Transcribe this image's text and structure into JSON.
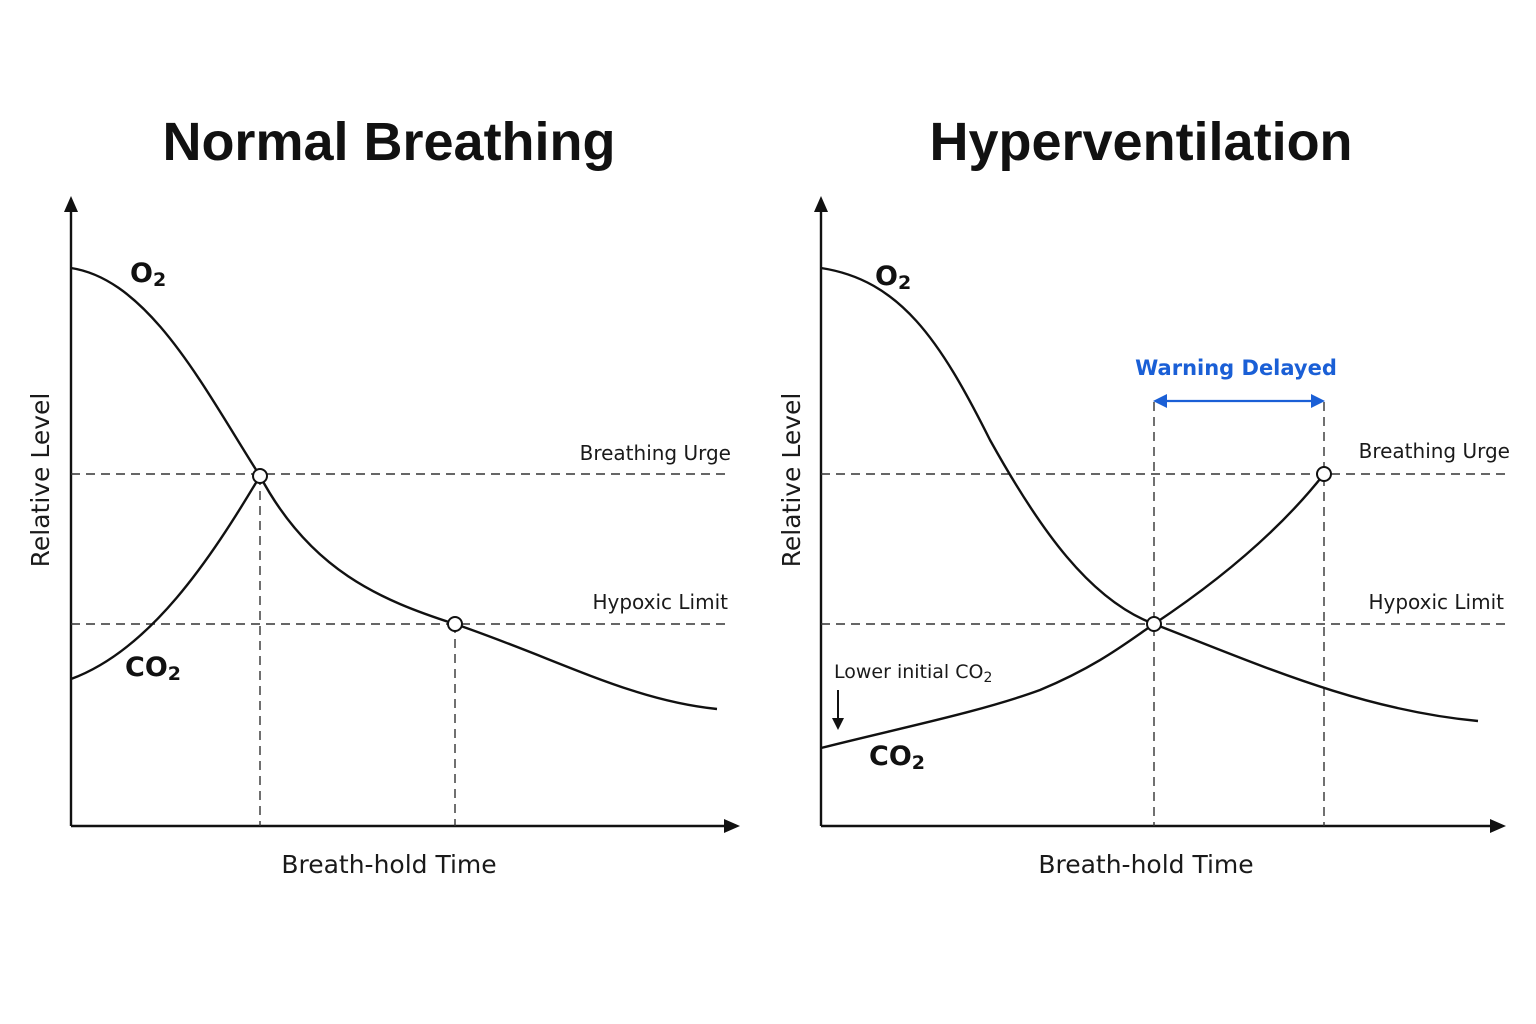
{
  "panels": [
    {
      "title": "Normal Breathing",
      "y_axis_label": "Relative Level",
      "x_axis_label": "Breath-hold Time",
      "o2_label": {
        "base": "O",
        "sub": "2"
      },
      "co2_label": {
        "base": "CO",
        "sub": "2"
      },
      "breathing_urge_label": "Breathing Urge",
      "hypoxic_limit_label": "Hypoxic Limit"
    },
    {
      "title": "Hyperventilation",
      "y_axis_label": "Relative Level",
      "x_axis_label": "Breath-hold Time",
      "o2_label": {
        "base": "O",
        "sub": "2"
      },
      "co2_label": {
        "base": "CO",
        "sub": "2"
      },
      "breathing_urge_label": "Breathing Urge",
      "hypoxic_limit_label": "Hypoxic Limit",
      "lower_initial_co2_label": {
        "base": "Lower initial CO",
        "sub": "2"
      },
      "warning_delayed_label": "Warning Delayed"
    }
  ],
  "colors": {
    "ink": "#111111",
    "warning": "#1a5fd6",
    "background": "#ffffff"
  },
  "icons": {
    "axis_arrow": "arrow-head-icon",
    "down_arrow": "down-arrow-icon",
    "double_arrow": "double-arrow-icon"
  }
}
